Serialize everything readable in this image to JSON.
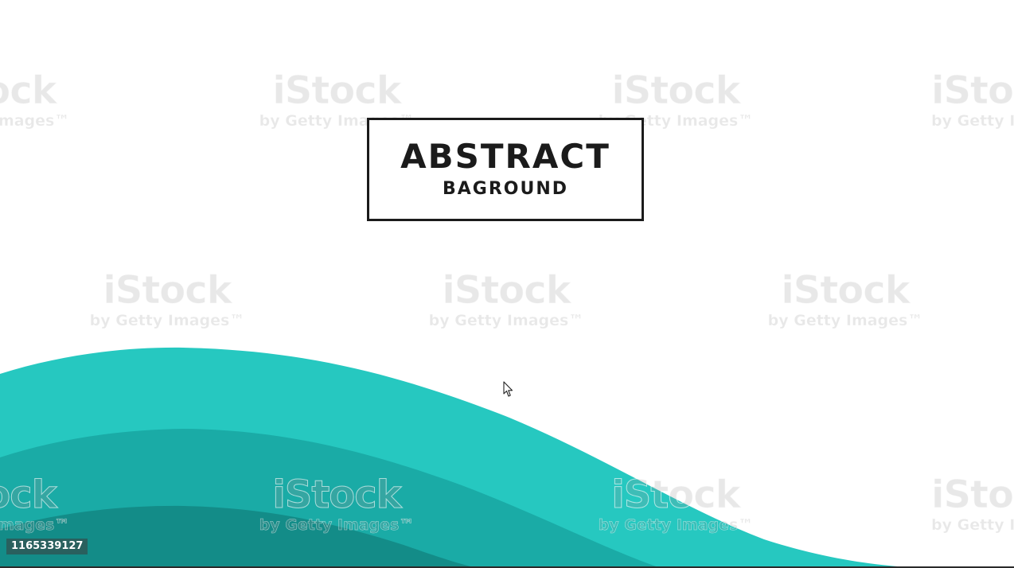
{
  "logo": {
    "title": "ABSTRACT",
    "subtitle": "BAGROUND"
  },
  "watermark": {
    "brand": "iStock",
    "sub": "by Getty Images™"
  },
  "image_id": "1165339127",
  "colors": {
    "background": "#ffffff",
    "wave_light": "#26c8c0",
    "wave_mid": "#1aaba6",
    "wave_dark": "#138c88",
    "logo_ink": "#1b1b1b"
  },
  "icons": {
    "cursor": "mouse-pointer-icon"
  }
}
